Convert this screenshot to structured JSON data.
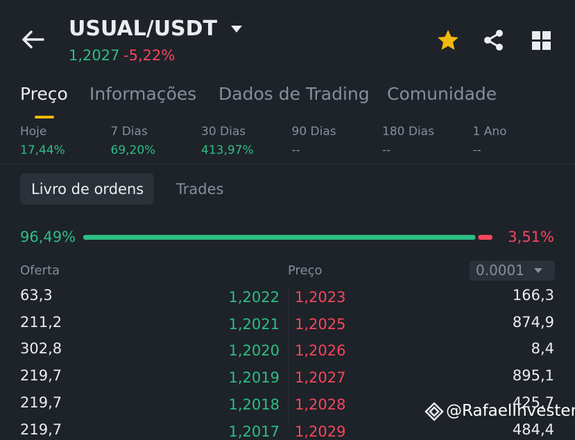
{
  "header": {
    "pair": "USUAL/USDT",
    "price": "1,2027",
    "change": "-5,22%"
  },
  "tabs": [
    "Preço",
    "Informações",
    "Dados de Trading",
    "Comunidade"
  ],
  "periods": [
    {
      "label": "Hoje",
      "value": "17,44%"
    },
    {
      "label": "7 Dias",
      "value": "69,20%"
    },
    {
      "label": "30 Dias",
      "value": "413,97%"
    },
    {
      "label": "90 Dias",
      "value": "--"
    },
    {
      "label": "180 Dias",
      "value": "--"
    },
    {
      "label": "1 Ano",
      "value": "--"
    }
  ],
  "subtabs": [
    "Livro de ordens",
    "Trades"
  ],
  "ratio": {
    "bid": {
      "value": 96.49,
      "label": "96,49%"
    },
    "ask": {
      "value": 3.51,
      "label": "3,51%"
    }
  },
  "book": {
    "headers": {
      "bid": "Oferta",
      "price": "Preço",
      "precision": "0.0001"
    },
    "rows": [
      [
        "63,3",
        "1,2022",
        "1,2023",
        "166,3"
      ],
      [
        "211,2",
        "1,2021",
        "1,2025",
        "874,9"
      ],
      [
        "302,8",
        "1,2020",
        "1,2026",
        "8,4"
      ],
      [
        "219,7",
        "1,2019",
        "1,2027",
        "895,1"
      ],
      [
        "219,7",
        "1,2018",
        "1,2028",
        "425,7"
      ],
      [
        "219,7",
        "1,2017",
        "1,2029",
        "484,4"
      ]
    ]
  },
  "watermark": "@RafaelInvester"
}
